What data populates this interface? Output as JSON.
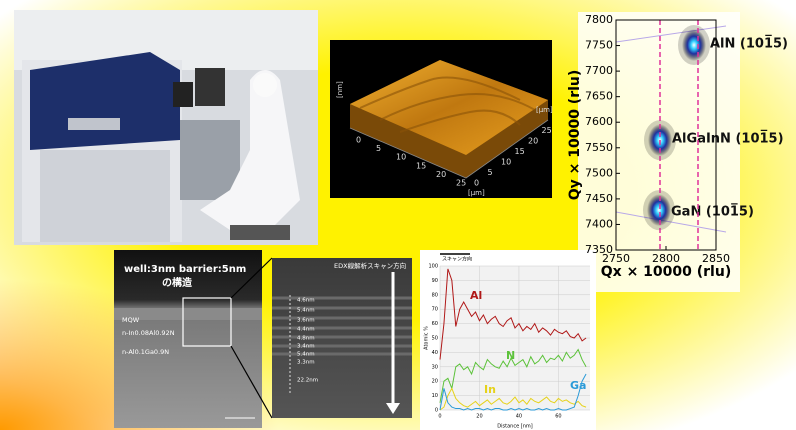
{
  "chart_data": [
    {
      "type": "scatter",
      "xlabel": "Qx × 10000 (rlu)",
      "ylabel": "Qy × 10000 (rlu)",
      "xlim": [
        2750,
        2850
      ],
      "ylim": [
        7350,
        7800
      ],
      "xticks": [
        2750,
        2800,
        2850
      ],
      "yticks": [
        7350,
        7400,
        7450,
        7500,
        7550,
        7600,
        7650,
        7700,
        7750,
        7800
      ],
      "reference_lines": {
        "x": [
          2794,
          2832
        ],
        "color": "#e0309a"
      },
      "series": [
        {
          "name": "AlN (101̅5)",
          "color": "#1a2a9c",
          "x": [
            2828
          ],
          "values": [
            7751
          ]
        },
        {
          "name": "AlGaInN (101̅5)",
          "color": "#1a2a9c",
          "x": [
            2794
          ],
          "values": [
            7565
          ]
        },
        {
          "name": "GaN (101̅5)",
          "color": "#1a2a9c",
          "x": [
            2793
          ],
          "values": [
            7428
          ]
        }
      ]
    },
    {
      "type": "line",
      "annotation": "スキャン方向",
      "xlabel": "Distance [nm]",
      "ylabel": "Atomic %",
      "xlim": [
        0,
        76
      ],
      "ylim": [
        0,
        100
      ],
      "xticks": [
        0,
        20,
        40,
        60
      ],
      "yticks": [
        0,
        10,
        20,
        30,
        40,
        50,
        60,
        70,
        80,
        90,
        100
      ],
      "grid": true,
      "x": [
        0,
        2,
        4,
        6,
        8,
        10,
        12,
        14,
        16,
        18,
        20,
        22,
        24,
        26,
        28,
        30,
        32,
        34,
        36,
        38,
        40,
        42,
        44,
        46,
        48,
        50,
        52,
        54,
        56,
        58,
        60,
        62,
        64,
        66,
        68,
        70,
        72,
        74
      ],
      "series": [
        {
          "name": "Al",
          "color": "#b01818",
          "values": [
            35,
            60,
            98,
            90,
            58,
            70,
            75,
            70,
            65,
            68,
            62,
            66,
            60,
            63,
            65,
            60,
            58,
            62,
            64,
            57,
            60,
            55,
            58,
            56,
            60,
            54,
            57,
            55,
            52,
            56,
            54,
            53,
            55,
            51,
            50,
            53,
            48,
            50
          ]
        },
        {
          "name": "N",
          "color": "#5cc23a",
          "values": [
            5,
            20,
            22,
            15,
            30,
            32,
            28,
            30,
            25,
            33,
            30,
            28,
            35,
            32,
            30,
            29,
            34,
            30,
            36,
            31,
            33,
            35,
            30,
            37,
            32,
            34,
            38,
            33,
            36,
            35,
            38,
            34,
            40,
            36,
            38,
            42,
            35,
            30
          ]
        },
        {
          "name": "In",
          "color": "#e6d21a",
          "values": [
            0,
            2,
            10,
            15,
            8,
            5,
            3,
            2,
            4,
            6,
            3,
            5,
            7,
            4,
            6,
            8,
            5,
            4,
            6,
            9,
            5,
            7,
            4,
            8,
            6,
            5,
            7,
            9,
            6,
            5,
            8,
            6,
            7,
            5,
            4,
            6,
            3,
            2
          ]
        },
        {
          "name": "Ga",
          "color": "#2a9ad8",
          "values": [
            0,
            15,
            5,
            2,
            1,
            1,
            0,
            1,
            0,
            1,
            1,
            0,
            1,
            0,
            1,
            1,
            0,
            0,
            1,
            0,
            1,
            0,
            1,
            0,
            0,
            1,
            0,
            1,
            0,
            0,
            1,
            0,
            0,
            1,
            2,
            10,
            20,
            25
          ]
        }
      ]
    }
  ],
  "afm": {
    "x_ticks": [
      "0",
      "5",
      "10",
      "15",
      "20",
      "25"
    ],
    "y_ticks": [
      "0",
      "5",
      "10",
      "15",
      "20",
      "25"
    ],
    "x_unit": "[μm]",
    "y_unit": "[μm]",
    "z_unit": "[nm]"
  },
  "tem": {
    "title": "well:3nm  barrier:5nm",
    "subtitle": "の構造",
    "layers": [
      "MQW",
      "n-In0.08Al0.92N",
      "n-Al0.1Ga0.9N"
    ],
    "scan_label": "EDX線解析スキャン方向",
    "thicknesses": [
      "4.6nm",
      "5.4nm",
      "3.6nm",
      "4.4nm",
      "4.8nm",
      "3.4nm",
      "5.4nm",
      "3.3nm",
      "22.2nm"
    ]
  }
}
